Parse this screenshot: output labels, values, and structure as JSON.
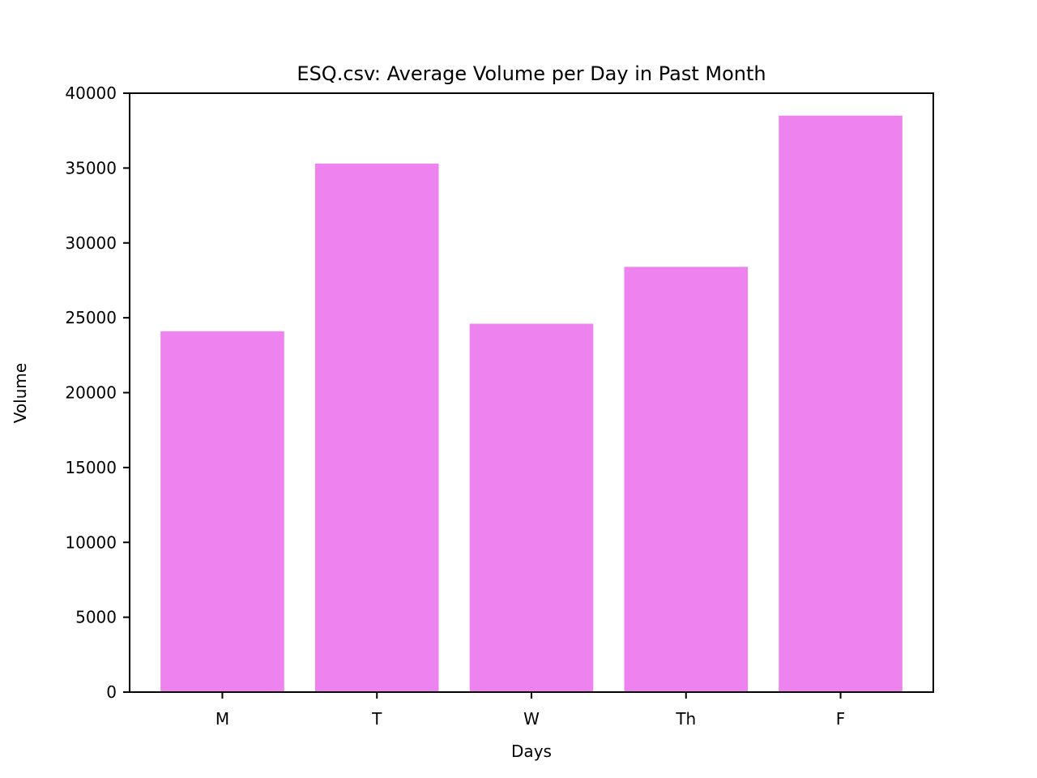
{
  "chart_data": {
    "type": "bar",
    "title": "ESQ.csv: Average Volume per Day in Past Month",
    "xlabel": "Days",
    "ylabel": "Volume",
    "categories": [
      "M",
      "T",
      "W",
      "Th",
      "F"
    ],
    "values": [
      24100,
      35300,
      24600,
      28400,
      38500
    ],
    "ylim": [
      0,
      40000
    ],
    "yticks": [
      0,
      5000,
      10000,
      15000,
      20000,
      25000,
      30000,
      35000,
      40000
    ],
    "ytick_labels": [
      "0",
      "5000",
      "10000",
      "15000",
      "20000",
      "25000",
      "30000",
      "35000",
      "40000"
    ],
    "bar_color": "#ee82ee",
    "grid": false,
    "legend": "none"
  }
}
